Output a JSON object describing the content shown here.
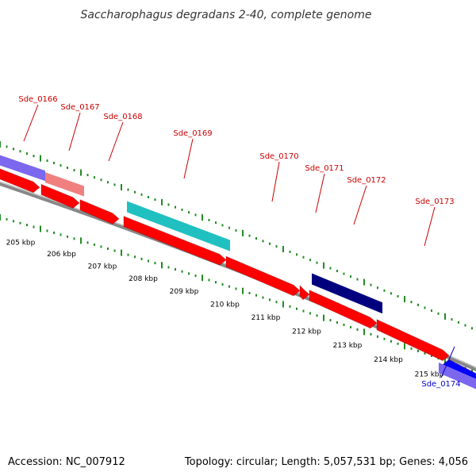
{
  "title": "Saccharophagus degradans 2-40, complete genome",
  "accession_text": "Accession: NC_007912",
  "topology_text": "Topology: circular; Length: 5,057,531 bp; Genes: 4,056",
  "colors": {
    "forward_gene": "#ff0000",
    "reverse_gene": "#0000ff",
    "label_forward": "#cc0000",
    "label_reverse": "#0000cc",
    "tick": "#228b22",
    "backbone": "#888888"
  },
  "scale": {
    "ticks": [
      "205 kbp",
      "206 kbp",
      "207 kbp",
      "208 kbp",
      "209 kbp",
      "210 kbp",
      "211 kbp",
      "212 kbp",
      "213 kbp",
      "214 kbp",
      "215 kbp"
    ]
  },
  "gene_labels": [
    {
      "name": "Sde_0166",
      "strand": "forward"
    },
    {
      "name": "Sde_0167",
      "strand": "forward"
    },
    {
      "name": "Sde_0168",
      "strand": "forward"
    },
    {
      "name": "Sde_0169",
      "strand": "forward"
    },
    {
      "name": "Sde_0170",
      "strand": "forward"
    },
    {
      "name": "Sde_0171",
      "strand": "forward"
    },
    {
      "name": "Sde_0172",
      "strand": "forward"
    },
    {
      "name": "Sde_0173",
      "strand": "forward"
    },
    {
      "name": "Sde_0174",
      "strand": "reverse"
    }
  ]
}
